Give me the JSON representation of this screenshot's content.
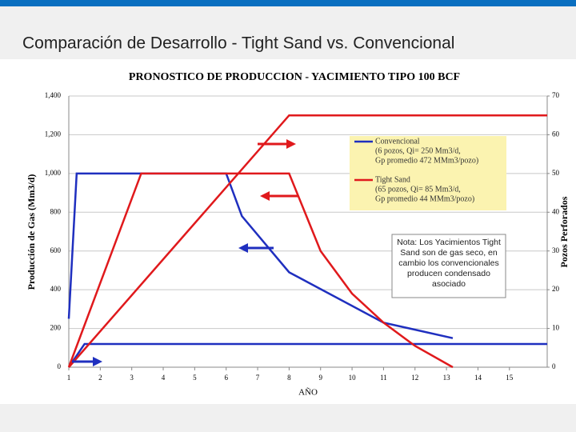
{
  "header": {
    "title": "Comparación de Desarrollo - Tight Sand vs. Convencional"
  },
  "chart_data": {
    "type": "line",
    "title": "PRONOSTICO DE PRODUCCION - YACIMIENTO TIPO 100 BCF",
    "x_label": "AÑO",
    "y_label": "Producción de Gas (Mm3/d)",
    "y2_label": "Pozos Perforados",
    "xlim": [
      1,
      16.2
    ],
    "xticks": [
      1,
      2,
      3,
      4,
      5,
      6,
      7,
      8,
      9,
      10,
      11,
      12,
      13,
      14,
      15
    ],
    "ylim": [
      0,
      1400
    ],
    "yticks": [
      0,
      200,
      400,
      600,
      800,
      {
        "value": 1000,
        "label": "1,000"
      },
      {
        "value": 1200,
        "label": "1,200"
      },
      {
        "value": 1400,
        "label": "1,400"
      }
    ],
    "y2lim": [
      0,
      70
    ],
    "y2ticks": [
      0,
      10,
      20,
      30,
      40,
      50,
      60,
      70
    ],
    "grid": true,
    "series": [
      {
        "name": "Convencional",
        "color": "#1f2fbf",
        "x": [
          1,
          1.25,
          6,
          6.5,
          8,
          11,
          13.2
        ],
        "values": [
          250,
          1000,
          1000,
          780,
          490,
          230,
          150
        ]
      },
      {
        "color": "#1f2fbf",
        "axis": "y2",
        "x": [
          1,
          1.5,
          16.2
        ],
        "values": [
          0,
          6,
          6
        ]
      },
      {
        "name": "Tight Sand",
        "color": "#e0191c",
        "x": [
          1,
          3.3,
          8,
          9,
          10,
          11,
          12,
          13.2
        ],
        "values": [
          0,
          1000,
          1000,
          600,
          380,
          230,
          110,
          0
        ]
      },
      {
        "color": "#e0191c",
        "axis": "y2",
        "x": [
          1,
          8,
          16.2
        ],
        "values": [
          0,
          65,
          65
        ]
      }
    ],
    "legend": [
      {
        "series": 0,
        "lines": [
          "(6 pozos, Qi= 250 Mm3/d,",
          "Gp promedio   472 MMm3/pozo)"
        ]
      },
      {
        "series": 2,
        "lines": [
          "(65 pozos, Qi= 85 Mm3/d,",
          "Gp promedio    44 MMm3/pozo)"
        ]
      }
    ],
    "note": "Nota: Los Yacimientos Tight Sand son de gas seco, en cambio los convencionales producen condensado asociado"
  }
}
